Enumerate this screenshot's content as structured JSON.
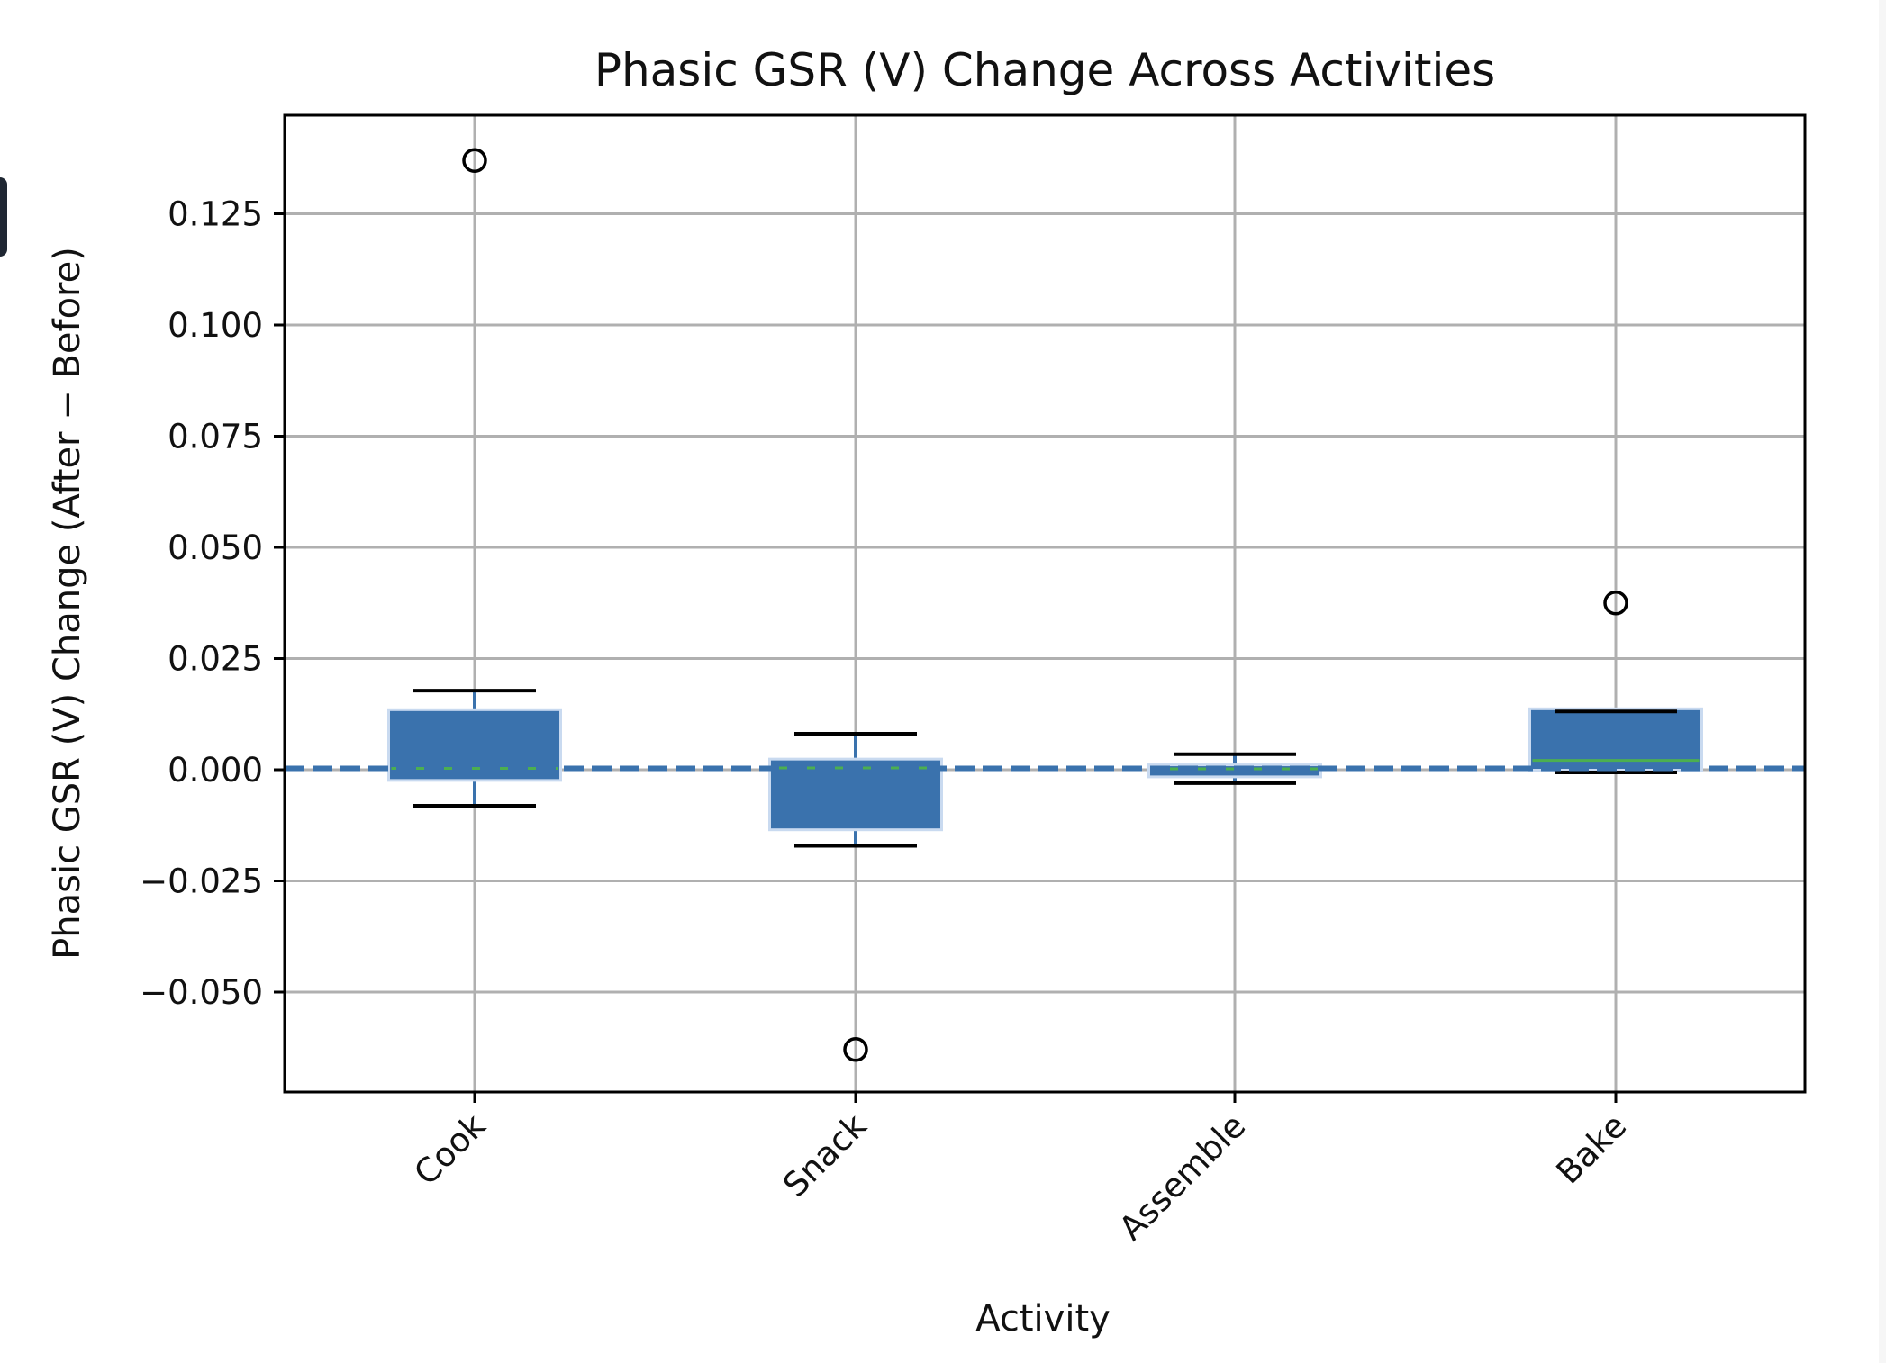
{
  "chart_data": {
    "type": "box",
    "title": "Phasic GSR (V) Change Across Activities",
    "xlabel": "Activity",
    "ylabel": "Phasic GSR (V) Change (After − Before)",
    "categories": [
      "Cook",
      "Snack",
      "Assemble",
      "Bake"
    ],
    "ylim": [
      -0.0725,
      0.147
    ],
    "yticks": [
      -0.05,
      -0.025,
      0.0,
      0.025,
      0.05,
      0.075,
      0.1,
      0.125
    ],
    "ytick_labels": [
      "−0.050",
      "−0.025",
      "0.000",
      "0.025",
      "0.050",
      "0.075",
      "0.100",
      "0.125"
    ],
    "grid": true,
    "reference_line": {
      "y": 0.0,
      "style": "dashed",
      "color": "#3a72ad"
    },
    "series": [
      {
        "name": "Cook",
        "whisker_low": -0.0081,
        "q1": -0.0024,
        "median": 0.0003,
        "q3": 0.0135,
        "whisker_high": 0.0178,
        "outliers": [
          0.137
        ]
      },
      {
        "name": "Snack",
        "whisker_low": -0.0171,
        "q1": -0.0135,
        "median": 0.0004,
        "q3": 0.0024,
        "whisker_high": 0.0081,
        "outliers": [
          -0.0629
        ]
      },
      {
        "name": "Assemble",
        "whisker_low": -0.003,
        "q1": -0.0016,
        "median": 0.0002,
        "q3": 0.0011,
        "whisker_high": 0.0035,
        "outliers": []
      },
      {
        "name": "Bake",
        "whisker_low": -0.0006,
        "q1": -0.0001,
        "median": 0.0021,
        "q3": 0.0137,
        "whisker_high": 0.0131,
        "outliers": [
          0.0375
        ]
      }
    ],
    "colors": {
      "box_fill": "#3a72ad",
      "median": "#4caf50",
      "whisker_cap": "#000000",
      "grid": "#b0b0b0"
    }
  }
}
